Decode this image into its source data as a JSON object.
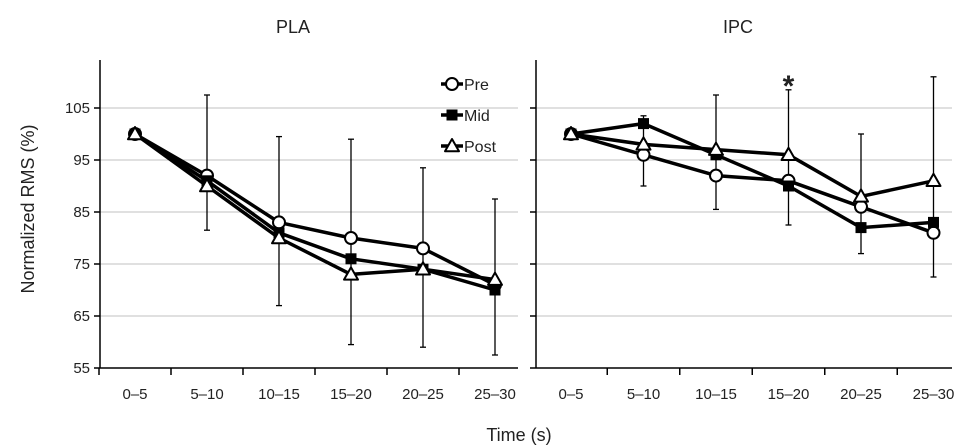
{
  "chart_data": {
    "type": "line",
    "ylabel": "Normalized RMS (%)",
    "xlabel": "Time (s)",
    "ylim": [
      55,
      115
    ],
    "yticks": [
      55,
      65,
      75,
      85,
      95,
      105
    ],
    "categories": [
      "0–5",
      "5–10",
      "10–15",
      "15–20",
      "20–25",
      "25–30"
    ],
    "grid": true,
    "legend": {
      "placement": "top-right of left panel",
      "entries": [
        {
          "name": "Pre",
          "marker": "circle-open"
        },
        {
          "name": "Mid",
          "marker": "square-filled"
        },
        {
          "name": "Post",
          "marker": "triangle-open"
        }
      ]
    },
    "colors": {
      "line": "#000000",
      "grid": "#c0c0c0",
      "marker_fill_open": "#ffffff"
    },
    "panels": [
      {
        "title": "PLA",
        "series": [
          {
            "name": "Pre",
            "values": [
              100,
              92,
              83,
              80,
              78,
              71
            ]
          },
          {
            "name": "Mid",
            "values": [
              100,
              91,
              81,
              76,
              74,
              70
            ]
          },
          {
            "name": "Post",
            "values": [
              100,
              90,
              80,
              73,
              74,
              72
            ]
          }
        ],
        "error_bars": [
          {
            "category": "5–10",
            "upper": 107.5,
            "lower": 81.5
          },
          {
            "category": "10–15",
            "upper": 99.5,
            "lower": 67
          },
          {
            "category": "15–20",
            "upper": 99,
            "lower": 59.5
          },
          {
            "category": "20–25",
            "upper": 93.5,
            "lower": 59
          },
          {
            "category": "25–30",
            "upper": 87.5,
            "lower": 57.5
          }
        ],
        "annotations": []
      },
      {
        "title": "IPC",
        "series": [
          {
            "name": "Pre",
            "values": [
              100,
              96,
              92,
              91,
              86,
              81
            ]
          },
          {
            "name": "Mid",
            "values": [
              100,
              102,
              96,
              90,
              82,
              83
            ]
          },
          {
            "name": "Post",
            "values": [
              100,
              98,
              97,
              96,
              88,
              91
            ]
          }
        ],
        "error_bars": [
          {
            "category": "5–10",
            "upper": 103.5,
            "lower": 90
          },
          {
            "category": "10–15",
            "upper": 107.5,
            "lower": 85.5
          },
          {
            "category": "15–20",
            "upper": 108.5,
            "lower": 82.5
          },
          {
            "category": "20–25",
            "upper": 100,
            "lower": 77
          },
          {
            "category": "25–30",
            "upper": 111,
            "lower": 72.5
          }
        ],
        "annotations": [
          {
            "text": "*",
            "category": "15–20",
            "y": 110
          }
        ]
      }
    ]
  }
}
